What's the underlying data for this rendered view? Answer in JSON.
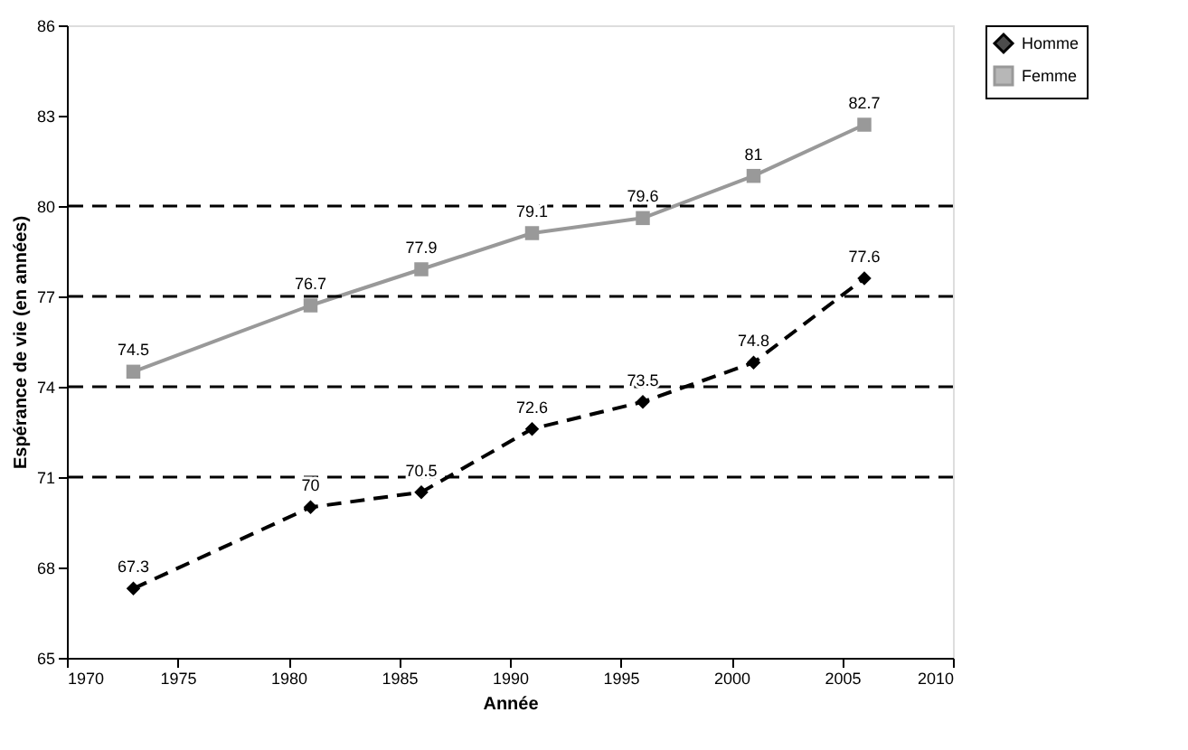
{
  "chart_data": {
    "type": "line",
    "xlabel": "Année",
    "ylabel": "Espérance de vie (en années)",
    "x": [
      1973,
      1981,
      1986,
      1991,
      1996,
      2001,
      2006
    ],
    "series": [
      {
        "name": "Homme",
        "color": "#000000",
        "marker": "diamond",
        "line_style": "dashed",
        "values": [
          67.3,
          70,
          70.5,
          72.6,
          73.5,
          74.8,
          77.6
        ]
      },
      {
        "name": "Femme",
        "color": "#999999",
        "marker": "square",
        "line_style": "solid",
        "values": [
          74.5,
          76.7,
          77.9,
          79.1,
          79.6,
          81,
          82.7
        ]
      }
    ],
    "xlim": [
      1970,
      2010
    ],
    "xticks": [
      1970,
      1975,
      1980,
      1985,
      1990,
      1995,
      2000,
      2005,
      2010
    ],
    "ylim": [
      65,
      86
    ],
    "yticks": [
      65,
      68,
      71,
      74,
      77,
      80,
      83,
      86
    ],
    "ref_lines": [
      {
        "axis": "y",
        "value": 71,
        "label": null,
        "color": "#000000",
        "line_style": "dashed"
      },
      {
        "axis": "y",
        "value": 74,
        "label": null,
        "color": "#000000",
        "line_style": "dashed"
      },
      {
        "axis": "y",
        "value": 77,
        "label": null,
        "color": "#000000",
        "line_style": "dashed"
      },
      {
        "axis": "y",
        "value": 80,
        "label": null,
        "color": "#000000",
        "line_style": "dashed"
      }
    ],
    "data_labels": true,
    "legend": "right",
    "grid": false
  }
}
